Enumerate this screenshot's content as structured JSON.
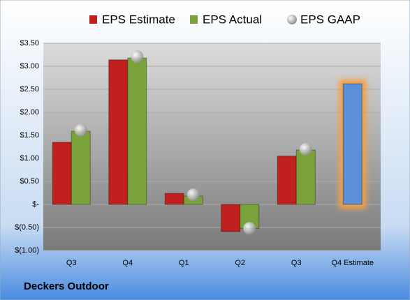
{
  "chart_data": {
    "type": "bar",
    "footer": "Deckers Outdoor",
    "categories": [
      "Q3",
      "Q4",
      "Q1",
      "Q2",
      "Q3",
      "Q4 Estimate"
    ],
    "series": [
      {
        "name": "EPS Estimate",
        "color": "#c0201e",
        "colors": [
          "#c0201e",
          "#c0201e",
          "#c0201e",
          "#c0201e",
          "#c0201e",
          "#5b8fd8"
        ],
        "values": [
          1.35,
          3.14,
          0.24,
          -0.59,
          1.05,
          2.62
        ]
      },
      {
        "name": "EPS Actual",
        "color": "#7aa23a",
        "values": [
          1.59,
          3.18,
          0.18,
          -0.52,
          1.18,
          null
        ]
      },
      {
        "name": "EPS GAAP",
        "type": "scatter",
        "color": "#a8a8a8",
        "values": [
          1.61,
          3.21,
          0.21,
          -0.52,
          1.2,
          null
        ]
      }
    ],
    "highlight_glow": "#f5a040",
    "ylim": [
      -1,
      3.5
    ],
    "yticks": [
      {
        "value": -1,
        "label": "$(1.00)"
      },
      {
        "value": -0.5,
        "label": "$(0.50)"
      },
      {
        "value": 0,
        "label": "$-"
      },
      {
        "value": 0.5,
        "label": "$0.50"
      },
      {
        "value": 1,
        "label": "$1.00"
      },
      {
        "value": 1.5,
        "label": "$1.50"
      },
      {
        "value": 2,
        "label": "$2.00"
      },
      {
        "value": 2.5,
        "label": "$2.50"
      },
      {
        "value": 3,
        "label": "$3.00"
      },
      {
        "value": 3.5,
        "label": "$3.50"
      }
    ],
    "grid": true
  }
}
